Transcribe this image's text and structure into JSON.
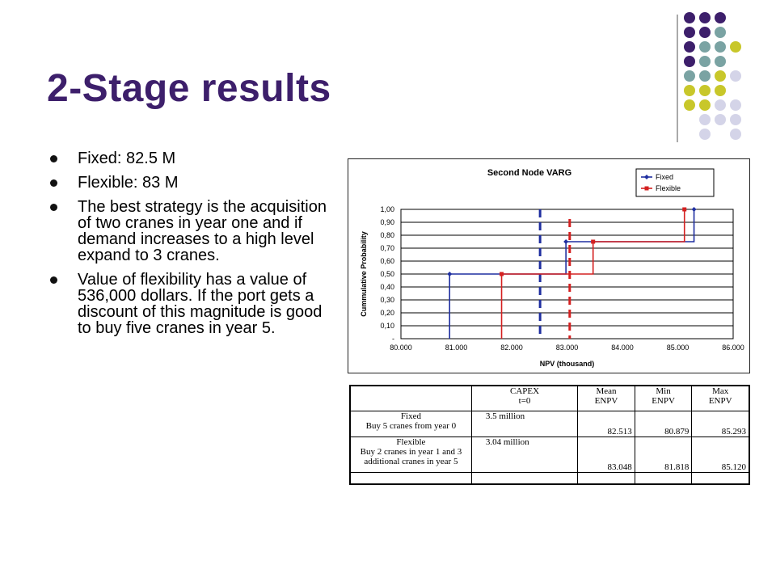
{
  "slide": {
    "title": "2-Stage results",
    "bullets": [
      "Fixed: 82.5 M",
      "Flexible: 83 M",
      "The best strategy is the acquisition of two cranes in year one and if demand increases to a high level expand to 3 cranes.",
      "Value of flexibility has a value of 536,000 dollars. If the port gets a discount of this magnitude is good to buy five cranes in year 5."
    ]
  },
  "colors": {
    "title": "#3d1f6b",
    "fixed": "#1f2fa0",
    "flexible": "#d42020",
    "deco_purple": "#3d1f6b",
    "deco_teal": "#7aa3a3",
    "deco_olive": "#c8c72a",
    "deco_lavender": "#d4d4e8"
  },
  "chart_data": {
    "type": "line",
    "title": "Second Node VARG",
    "xlabel": "NPV (thousand)",
    "ylabel": "Cummulative Probability",
    "xlim": [
      80000,
      86000
    ],
    "ylim": [
      0,
      1
    ],
    "x_ticks": [
      "80.000",
      "81.000",
      "82.000",
      "83.000",
      "84.000",
      "85.000",
      "86.000"
    ],
    "y_ticks": [
      "-",
      "0,10",
      "0,20",
      "0,30",
      "0,40",
      "0,50",
      "0,60",
      "0,70",
      "0,80",
      "0,90",
      "1,00"
    ],
    "grid": true,
    "legend": "top-right",
    "series": [
      {
        "name": "Fixed",
        "step": true,
        "x": [
          80879,
          82980,
          85293
        ],
        "y": [
          0.5,
          0.75,
          1.0
        ],
        "mean": 82513
      },
      {
        "name": "Flexible",
        "step": true,
        "x": [
          81818,
          83470,
          85120
        ],
        "y": [
          0.5,
          0.75,
          1.0
        ],
        "mean": 83048
      }
    ]
  },
  "table": {
    "headers": [
      "",
      "CAPEX\nt=0",
      "Mean\nENPV",
      "Min\nENPV",
      "Max\nENPV"
    ],
    "rows": [
      {
        "label": "Fixed\nBuy 5 cranes from year 0",
        "capex": "3.5 million",
        "mean": "82.513",
        "min": "80.879",
        "max": "85.293"
      },
      {
        "label": "Flexible\nBuy 2 cranes in year 1 and 3\nadditional cranes in year 5",
        "capex": "3.04 million",
        "mean": "83.048",
        "min": "81.818",
        "max": "85.120"
      }
    ]
  }
}
